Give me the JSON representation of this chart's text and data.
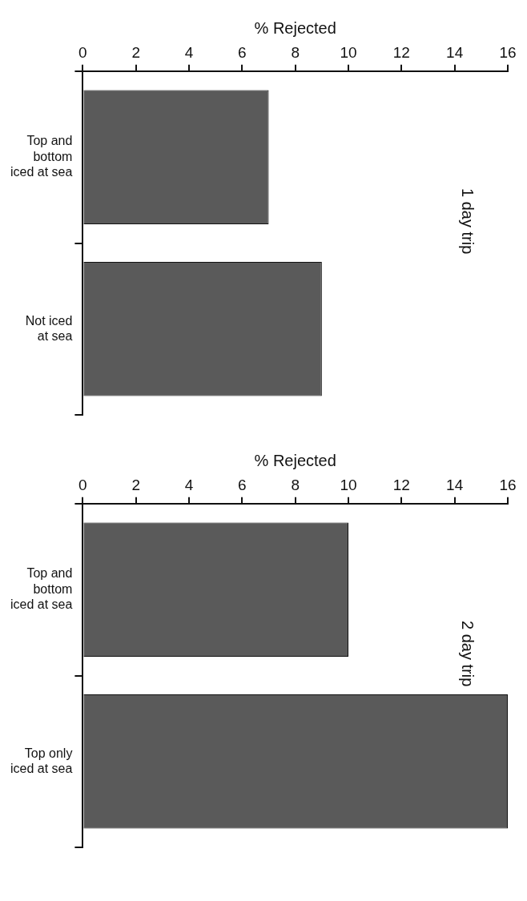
{
  "chart_data": [
    {
      "type": "bar",
      "orientation": "horizontal",
      "title": "1 day trip",
      "xlabel": "% Rejected",
      "categories": [
        "Top and\nbottom\niced at sea",
        "Not iced\nat sea"
      ],
      "values": [
        7,
        9
      ],
      "color": "#5a5a5a",
      "xlim": [
        0,
        16
      ],
      "xticks": [
        0,
        2,
        4,
        6,
        8,
        10,
        12,
        14,
        16
      ],
      "grid": false,
      "legend": false
    },
    {
      "type": "bar",
      "orientation": "horizontal",
      "title": "2 day trip",
      "xlabel": "% Rejected",
      "categories": [
        "Top and\nbottom\niced at sea",
        "Top only\niced at sea"
      ],
      "values": [
        10,
        16
      ],
      "color": "#5a5a5a",
      "xlim": [
        0,
        16
      ],
      "xticks": [
        0,
        2,
        4,
        6,
        8,
        10,
        12,
        14,
        16
      ],
      "grid": false,
      "legend": false
    }
  ]
}
